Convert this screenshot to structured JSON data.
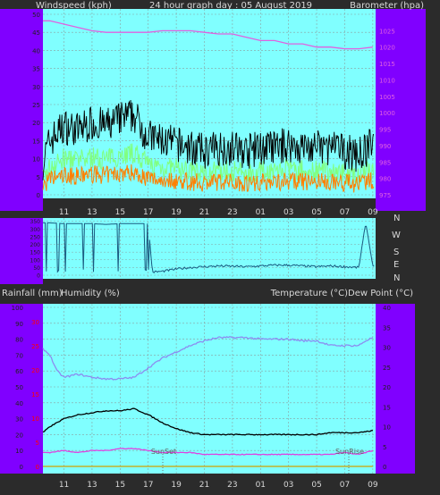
{
  "header": {
    "left": "Windspeed (kph)",
    "center": "24 hour graph day : 05 August 2019",
    "right": "Barometer (hpa)"
  },
  "direction_labels": [
    "N",
    "W",
    "S",
    "E",
    "N"
  ],
  "lower_header": {
    "left1": "Rainfall (mm)",
    "left2": "Humidity (%)",
    "right": "Temperature (°C)Dew Point (°C)"
  },
  "annotations": {
    "sunset": "SunSet",
    "sunrise": "SunRise"
  },
  "colors": {
    "panel_bg": "#80ffff",
    "side_bg": "#8000ff",
    "page_bg": "#2b2b2b",
    "wind_gust": "#000000",
    "wind_avg": "#80ff80",
    "wind_low": "#ff8000",
    "barometer": "#e060e0",
    "direction": "#1a5a80",
    "humidity": "#8c8cf0",
    "temperature": "#000000",
    "dew_point": "#e040e0",
    "rain_axis": "#ff0000"
  },
  "chart_data": [
    {
      "type": "line",
      "title": "24 hour graph day : 05 August 2019",
      "x_ticks": [
        "11",
        "13",
        "15",
        "17",
        "19",
        "21",
        "23",
        "01",
        "03",
        "05",
        "07",
        "09"
      ],
      "ylabel_left": "Windspeed (kph)",
      "ylabel_right": "Barometer (hpa)",
      "y_left_ticks": [
        0,
        5,
        10,
        15,
        20,
        25,
        30,
        35,
        40,
        45,
        50
      ],
      "ylim_left": [
        0,
        50
      ],
      "y_right_ticks": [
        975,
        980,
        985,
        990,
        995,
        1000,
        1005,
        1010,
        1015,
        1020,
        1025
      ],
      "ylim_right": [
        975,
        1030
      ],
      "series": [
        {
          "name": "Windspeed (kph)",
          "hours": [
            9.5,
            10,
            11,
            12,
            13,
            14,
            15,
            16,
            16.5,
            17,
            18,
            19,
            20,
            21,
            22,
            23,
            24,
            25,
            26,
            27,
            28,
            29,
            30,
            31,
            32,
            33
          ],
          "values": [
            8,
            14,
            18,
            17,
            19,
            18,
            20,
            21,
            18,
            15,
            14,
            13,
            12,
            11,
            12,
            12,
            11,
            12,
            12,
            13,
            12,
            12,
            12,
            11,
            10,
            13
          ]
        },
        {
          "name": "Barometer (hpa)",
          "hours": [
            9.5,
            10,
            11,
            12,
            13,
            14,
            15,
            16,
            17,
            18,
            19,
            20,
            21,
            22,
            23,
            24,
            25,
            26,
            27,
            28,
            29,
            30,
            31,
            32,
            33
          ],
          "values": [
            1028,
            1028,
            1027,
            1026,
            1025,
            1024.5,
            1024.5,
            1024.5,
            1024.5,
            1025,
            1025,
            1025,
            1024.5,
            1024,
            1024,
            1023,
            1022,
            1022,
            1021,
            1021,
            1020,
            1020,
            1019.5,
            1019.5,
            1020
          ]
        }
      ]
    },
    {
      "type": "line",
      "title": "",
      "y_ticks": [
        0,
        50,
        100,
        150,
        200,
        250,
        300,
        350
      ],
      "ylim": [
        0,
        360
      ],
      "right_labels": [
        "N",
        "W",
        "S",
        "E",
        "N"
      ],
      "series": [
        {
          "name": "Wind direction",
          "hours": [
            9.5,
            10,
            11,
            12,
            13,
            14,
            15,
            16,
            17,
            17.3,
            18,
            19,
            20,
            21,
            22,
            23,
            24,
            25,
            26,
            27,
            28,
            29,
            30,
            31,
            32,
            32.5,
            33
          ],
          "values": [
            340,
            340,
            335,
            335,
            335,
            330,
            335,
            335,
            335,
            20,
            25,
            40,
            50,
            55,
            60,
            58,
            55,
            60,
            65,
            65,
            60,
            55,
            60,
            55,
            50,
            340,
            60
          ]
        }
      ]
    },
    {
      "type": "line",
      "title": "",
      "ylabel_left_outer": "Rainfall (mm)",
      "ylabel_left": "Humidity (%)",
      "ylabel_right": "Temperature (°C)Dew Point (°C)",
      "x_ticks": [
        "11",
        "13",
        "15",
        "17",
        "19",
        "21",
        "23",
        "01",
        "03",
        "05",
        "07",
        "09"
      ],
      "rain_ticks": [
        0,
        5,
        10,
        15,
        20,
        25,
        30
      ],
      "ylim_rain": [
        0,
        33
      ],
      "humidity_ticks": [
        0,
        10,
        20,
        30,
        40,
        50,
        60,
        70,
        80,
        90,
        100
      ],
      "ylim_humidity": [
        0,
        100
      ],
      "temp_ticks": [
        0,
        5,
        10,
        15,
        20,
        25,
        30,
        35,
        40
      ],
      "ylim_temp": [
        0,
        40
      ],
      "series": [
        {
          "name": "Humidity (%)",
          "hours": [
            9.5,
            10,
            10.5,
            11,
            12,
            13,
            14,
            15,
            16,
            17,
            18,
            19,
            20,
            21,
            22,
            23,
            24,
            25,
            26,
            27,
            28,
            29,
            30,
            31,
            32,
            32.5,
            33
          ],
          "values": [
            74,
            70,
            60,
            56,
            58,
            56,
            55,
            55,
            56,
            62,
            68,
            72,
            76,
            79,
            81,
            81,
            81,
            80,
            80,
            80,
            79,
            79,
            76,
            76,
            76,
            79,
            81
          ]
        },
        {
          "name": "Temperature (°C)",
          "hours": [
            9.5,
            10,
            11,
            12,
            13,
            14,
            15,
            16,
            17,
            18,
            19,
            20,
            21,
            22,
            23,
            24,
            25,
            26,
            27,
            28,
            29,
            30,
            31,
            32,
            33
          ],
          "values": [
            8.5,
            10,
            12,
            13,
            13.5,
            14,
            14,
            14.5,
            13,
            11,
            9.5,
            8.5,
            8,
            8,
            8,
            8,
            8,
            8,
            8,
            8,
            8,
            8.5,
            8.5,
            8.5,
            9
          ]
        },
        {
          "name": "Dew Point (°C)",
          "hours": [
            9.5,
            10,
            11,
            12,
            13,
            14,
            15,
            16,
            17,
            18,
            19,
            20,
            21,
            22,
            23,
            24,
            25,
            26,
            27,
            28,
            29,
            30,
            31,
            32,
            33
          ],
          "values": [
            3.5,
            3.5,
            4,
            3.5,
            4,
            4,
            4.5,
            4.5,
            4,
            3.5,
            3.5,
            3.5,
            3,
            3,
            3,
            3,
            3,
            3,
            3,
            3,
            3,
            3,
            3.5,
            3,
            4
          ]
        },
        {
          "name": "Rainfall (mm)",
          "hours": [
            9.5,
            33
          ],
          "values": [
            0,
            0
          ]
        }
      ]
    }
  ]
}
